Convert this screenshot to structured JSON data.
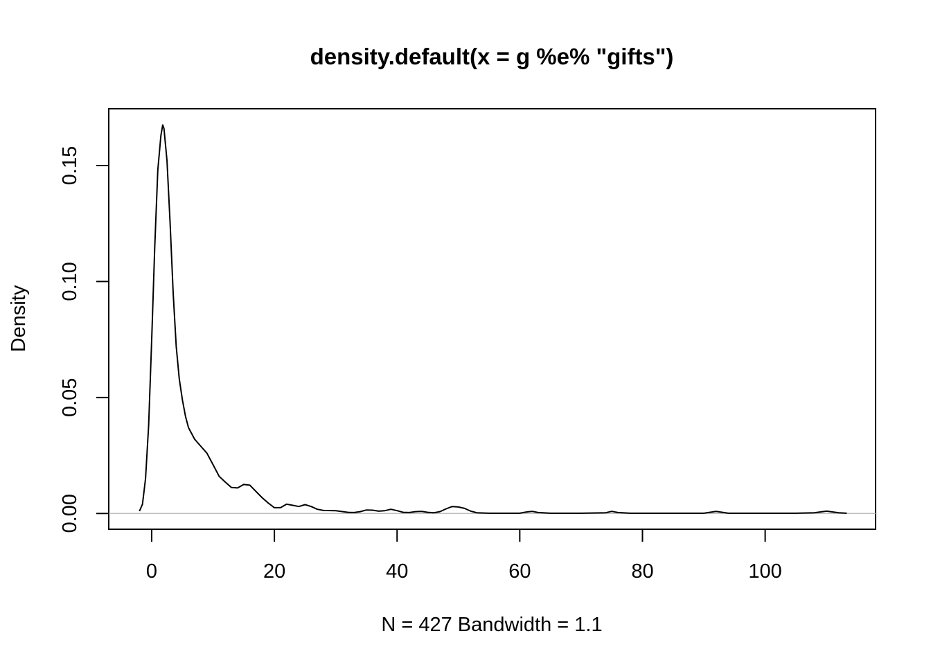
{
  "chart_data": {
    "type": "line",
    "title": "density.default(x = g %e% \"gifts\")",
    "xlabel": "N = 427   Bandwidth = 1.1",
    "ylabel": "Density",
    "xlim": [
      -7,
      118
    ],
    "ylim": [
      -0.0068,
      0.1745
    ],
    "x_ticks": [
      0,
      20,
      40,
      60,
      80,
      100
    ],
    "x_tick_labels": [
      "0",
      "20",
      "40",
      "60",
      "80",
      "100"
    ],
    "y_ticks": [
      0.0,
      0.05,
      0.1,
      0.15
    ],
    "y_tick_labels": [
      "0.00",
      "0.05",
      "0.10",
      "0.15"
    ],
    "grid": false,
    "legend": "none",
    "baseline": 0,
    "baseline_color": "#bebebe",
    "line_color": "#000000",
    "series": [
      {
        "x": [
          -2,
          -1.5,
          -1,
          -0.5,
          0,
          0.5,
          1,
          1.5,
          1.8,
          2,
          2.5,
          3,
          3.5,
          4,
          4.5,
          5,
          5.5,
          6,
          7,
          8,
          9,
          10,
          11,
          12,
          13,
          14,
          15,
          16,
          17,
          18,
          19,
          20,
          21,
          22,
          23,
          24,
          25,
          26,
          27,
          28,
          30,
          32,
          33,
          34,
          35,
          36,
          37,
          38,
          39,
          40,
          41,
          42,
          43,
          44,
          45,
          46,
          47,
          48,
          49,
          50,
          51,
          52,
          53,
          55,
          60,
          61,
          62,
          63,
          65,
          70,
          74,
          75,
          76,
          78,
          85,
          90,
          92,
          94,
          100,
          105,
          108,
          110,
          112,
          113.3
        ],
        "values": [
          0.001,
          0.004,
          0.015,
          0.038,
          0.075,
          0.115,
          0.148,
          0.163,
          0.1675,
          0.166,
          0.152,
          0.125,
          0.095,
          0.072,
          0.058,
          0.049,
          0.042,
          0.037,
          0.032,
          0.029,
          0.026,
          0.021,
          0.016,
          0.0135,
          0.0112,
          0.011,
          0.0125,
          0.0122,
          0.0095,
          0.0068,
          0.0045,
          0.0025,
          0.0025,
          0.004,
          0.0035,
          0.003,
          0.0038,
          0.003,
          0.0018,
          0.0013,
          0.0012,
          0.0005,
          0.0004,
          0.0008,
          0.0015,
          0.0014,
          0.001,
          0.0012,
          0.0018,
          0.0012,
          0.0005,
          0.0004,
          0.0008,
          0.0009,
          0.0005,
          0.0003,
          0.0008,
          0.002,
          0.003,
          0.0028,
          0.0022,
          0.001,
          0.0003,
          0.0001,
          0.0001,
          0.0006,
          0.0009,
          0.0004,
          0.0001,
          0.0001,
          0.0003,
          0.0009,
          0.0004,
          0.0001,
          0.0001,
          0.0001,
          0.0009,
          0.0001,
          0.0001,
          0.0001,
          0.0003,
          0.001,
          0.0003,
          0.0001
        ]
      }
    ]
  }
}
